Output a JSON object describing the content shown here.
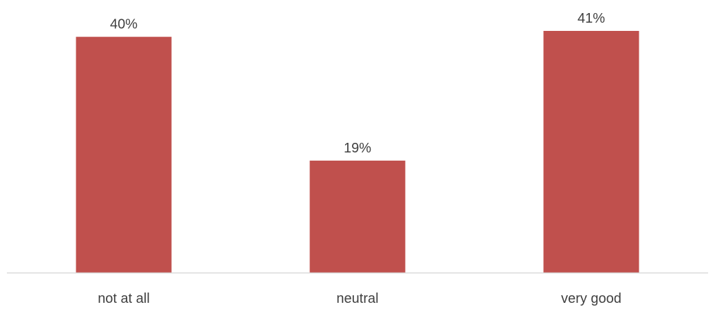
{
  "chart_data": {
    "type": "bar",
    "categories": [
      "not at all",
      "neutral",
      "very good"
    ],
    "values": [
      40,
      19,
      41
    ],
    "value_labels": [
      "40%",
      "19%",
      "41%"
    ],
    "unit": "%",
    "ylim": [
      0,
      41
    ],
    "title": "",
    "xlabel": "",
    "ylabel": "",
    "grid": false,
    "legend": "none",
    "colors": {
      "bar": "#c0504d",
      "axis": "#d9d9d9",
      "text": "#404040"
    }
  }
}
